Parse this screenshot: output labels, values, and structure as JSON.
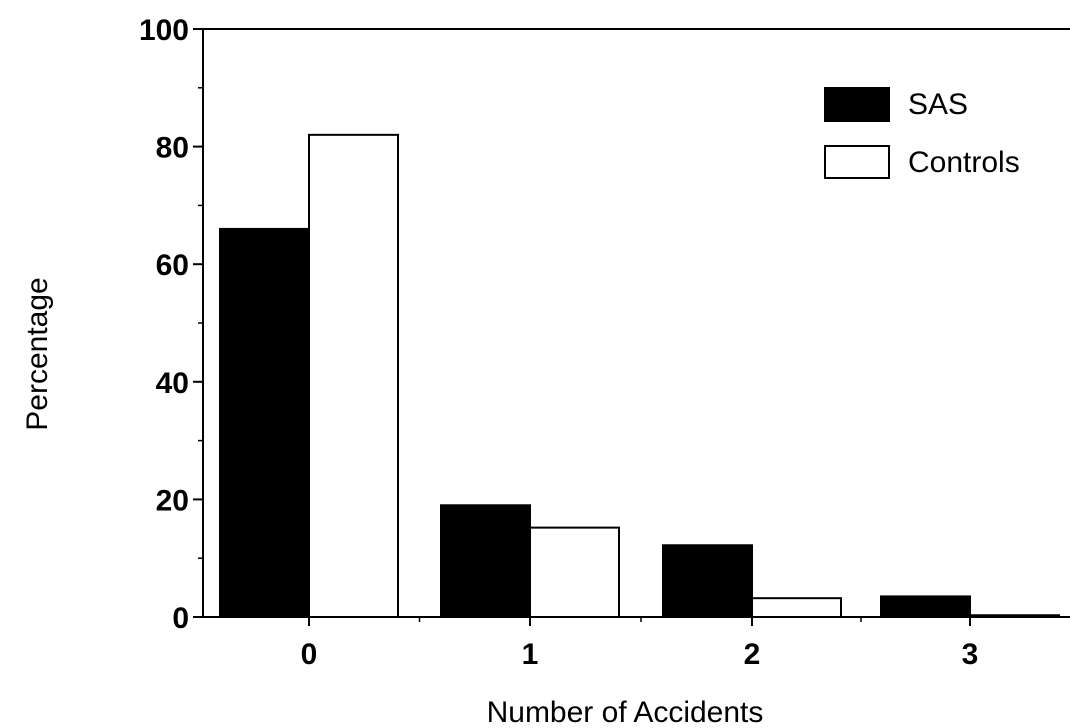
{
  "chart_data": {
    "type": "bar",
    "categories": [
      "0",
      "1",
      "2",
      "3"
    ],
    "series": [
      {
        "name": "SAS",
        "values": [
          66,
          19,
          12.2,
          3.5
        ],
        "color": "#000000"
      },
      {
        "name": "Controls",
        "values": [
          82,
          15.2,
          3.2,
          0.3
        ],
        "color": "#ffffff"
      }
    ],
    "xlabel": "Number of Accidents",
    "ylabel": "Percentage",
    "ylim": [
      0,
      100
    ],
    "yticks": [
      "0",
      "20",
      "40",
      "60",
      "80",
      "100"
    ],
    "grid": false,
    "legend_position": "top-right"
  }
}
